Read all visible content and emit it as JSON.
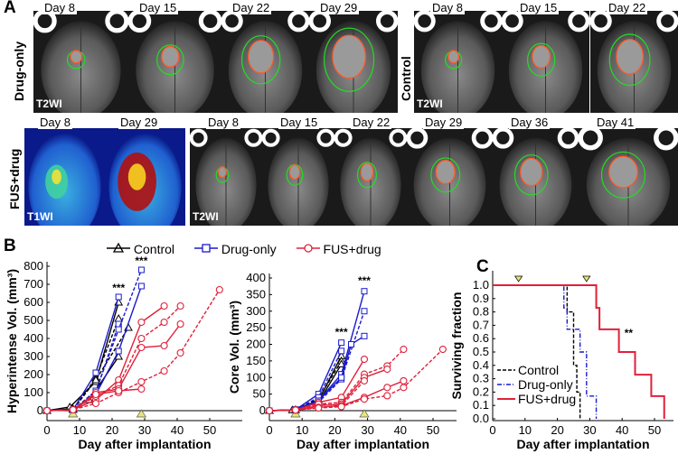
{
  "panel_a": {
    "letter": "A",
    "drug_only": {
      "label": "Drug-only",
      "days": [
        "Day 8",
        "Day 15",
        "Day 22",
        "Day 29"
      ],
      "sequence": "T2WI"
    },
    "control": {
      "label": "Control",
      "days": [
        "Day 8",
        "Day 15",
        "Day 22"
      ],
      "sequence": "T2WI"
    },
    "fus_drug": {
      "label": "FUS+drug",
      "t1_days": [
        "Day 8",
        "Day 29"
      ],
      "t1_sequence": "T1WI",
      "t2_days": [
        "Day 8",
        "Day 15",
        "Day 22",
        "Day 29",
        "Day 36",
        "Day 41"
      ],
      "t2_sequence": "T2WI"
    }
  },
  "panel_b": {
    "letter": "B"
  },
  "panel_c": {
    "letter": "C"
  },
  "legend": {
    "control": "Control",
    "drug_only": "Drug-only",
    "fus_drug": "FUS+drug"
  },
  "colors": {
    "control": "#000000",
    "drug_only": "#1a1acc",
    "fus_drug": "#e0203a",
    "marker": "#e6e67a",
    "outline_green": "#22dd22",
    "outline_red": "#ff5a2a"
  },
  "chart_data": [
    {
      "type": "line",
      "ylabel": "Hyperintense Vol. (mm³)",
      "xlabel": "Day after implantation",
      "xlim": [
        0,
        55
      ],
      "ylim": [
        -50,
        800
      ],
      "xticks": [
        0,
        10,
        20,
        30,
        40,
        50
      ],
      "yticks": [
        0,
        100,
        200,
        300,
        400,
        500,
        600,
        700,
        800
      ],
      "treatment_markers": [
        8,
        29
      ],
      "annotations": [
        {
          "text": "***",
          "x": 22,
          "y": 650
        },
        {
          "text": "***",
          "x": 29,
          "y": 800
        }
      ],
      "series": [
        {
          "name": "Control",
          "group": "control",
          "lines": [
            [
              [
                0,
                0
              ],
              [
                7,
                20
              ],
              [
                15,
                160
              ],
              [
                22,
                600
              ]
            ],
            [
              [
                0,
                0
              ],
              [
                8,
                5
              ],
              [
                15,
                180
              ],
              [
                22,
                510
              ]
            ],
            [
              [
                0,
                0
              ],
              [
                8,
                10
              ],
              [
                13,
                60
              ],
              [
                22,
                300
              ]
            ],
            [
              [
                0,
                0
              ],
              [
                8,
                5
              ],
              [
                15,
                170
              ],
              [
                25,
                460
              ]
            ]
          ]
        },
        {
          "name": "Drug-only",
          "group": "drug_only",
          "lines": [
            [
              [
                0,
                0
              ],
              [
                8,
                5
              ],
              [
                15,
                210
              ],
              [
                22,
                630
              ]
            ],
            [
              [
                0,
                0
              ],
              [
                8,
                5
              ],
              [
                15,
                100
              ],
              [
                22,
                480
              ]
            ],
            [
              [
                0,
                0
              ],
              [
                8,
                5
              ],
              [
                15,
                90
              ],
              [
                22,
                330
              ],
              [
                29,
                690
              ]
            ],
            [
              [
                0,
                0
              ],
              [
                8,
                5
              ],
              [
                15,
                110
              ],
              [
                22,
                450
              ],
              [
                29,
                780
              ]
            ]
          ]
        },
        {
          "name": "FUS+drug",
          "group": "fus_drug",
          "lines": [
            [
              [
                0,
                0
              ],
              [
                8,
                5
              ],
              [
                15,
                60
              ],
              [
                22,
                170
              ],
              [
                29,
                490
              ],
              [
                36,
                580
              ]
            ],
            [
              [
                0,
                0
              ],
              [
                8,
                5
              ],
              [
                15,
                80
              ],
              [
                22,
                140
              ],
              [
                29,
                400
              ],
              [
                36,
                490
              ],
              [
                41,
                580
              ]
            ],
            [
              [
                0,
                0
              ],
              [
                8,
                5
              ],
              [
                15,
                100
              ],
              [
                22,
                120
              ],
              [
                29,
                350
              ],
              [
                36,
                360
              ],
              [
                41,
                480
              ]
            ],
            [
              [
                0,
                0
              ],
              [
                8,
                5
              ],
              [
                15,
                40
              ],
              [
                22,
                100
              ],
              [
                29,
                160
              ],
              [
                36,
                220
              ],
              [
                41,
                320
              ],
              [
                53,
                670
              ]
            ],
            [
              [
                0,
                0
              ],
              [
                8,
                5
              ],
              [
                15,
                90
              ],
              [
                22,
                110
              ],
              [
                29,
                120
              ]
            ]
          ]
        }
      ]
    },
    {
      "type": "line",
      "ylabel": "Core Vol. (mm³)",
      "xlabel": "Day after implantation",
      "xlim": [
        0,
        55
      ],
      "ylim": [
        -25,
        400
      ],
      "xticks": [
        0,
        10,
        20,
        30,
        40,
        50
      ],
      "yticks": [
        0,
        50,
        100,
        150,
        200,
        250,
        300,
        350,
        400
      ],
      "treatment_markers": [
        8,
        29
      ],
      "annotations": [
        {
          "text": "***",
          "x": 22,
          "y": 220
        },
        {
          "text": "***",
          "x": 29,
          "y": 375
        }
      ],
      "series": [
        {
          "name": "Control",
          "group": "control",
          "lines": [
            [
              [
                0,
                0
              ],
              [
                7,
                2
              ],
              [
                15,
                30
              ],
              [
                22,
                165
              ]
            ],
            [
              [
                0,
                0
              ],
              [
                8,
                3
              ],
              [
                15,
                35
              ],
              [
                22,
                150
              ]
            ],
            [
              [
                0,
                0
              ],
              [
                8,
                2
              ],
              [
                15,
                25
              ],
              [
                22,
                140
              ]
            ]
          ]
        },
        {
          "name": "Drug-only",
          "group": "drug_only",
          "lines": [
            [
              [
                0,
                0
              ],
              [
                8,
                3
              ],
              [
                15,
                50
              ],
              [
                22,
                205
              ]
            ],
            [
              [
                0,
                0
              ],
              [
                8,
                3
              ],
              [
                15,
                40
              ],
              [
                22,
                180
              ]
            ],
            [
              [
                0,
                0
              ],
              [
                8,
                3
              ],
              [
                15,
                30
              ],
              [
                22,
                110
              ],
              [
                29,
                360
              ]
            ],
            [
              [
                0,
                0
              ],
              [
                8,
                3
              ],
              [
                15,
                25
              ],
              [
                22,
                95
              ],
              [
                29,
                300
              ]
            ],
            [
              [
                0,
                0
              ],
              [
                8,
                3
              ],
              [
                15,
                30
              ],
              [
                22,
                100
              ],
              [
                25,
                200
              ],
              [
                29,
                225
              ]
            ]
          ]
        },
        {
          "name": "FUS+drug",
          "group": "fus_drug",
          "lines": [
            [
              [
                0,
                0
              ],
              [
                8,
                2
              ],
              [
                15,
                25
              ],
              [
                22,
                40
              ],
              [
                29,
                155
              ]
            ],
            [
              [
                0,
                0
              ],
              [
                8,
                2
              ],
              [
                15,
                20
              ],
              [
                22,
                25
              ],
              [
                29,
                110
              ],
              [
                36,
                135
              ],
              [
                41,
                185
              ]
            ],
            [
              [
                0,
                0
              ],
              [
                8,
                2
              ],
              [
                15,
                15
              ],
              [
                22,
                20
              ],
              [
                29,
                100
              ],
              [
                36,
                125
              ]
            ],
            [
              [
                0,
                0
              ],
              [
                8,
                2
              ],
              [
                15,
                20
              ],
              [
                22,
                15
              ],
              [
                29,
                90
              ]
            ],
            [
              [
                0,
                0
              ],
              [
                8,
                2
              ],
              [
                15,
                10
              ],
              [
                22,
                15
              ],
              [
                29,
                40
              ],
              [
                36,
                70
              ],
              [
                41,
                90
              ]
            ],
            [
              [
                0,
                0
              ],
              [
                8,
                2
              ],
              [
                15,
                8
              ],
              [
                22,
                12
              ],
              [
                29,
                35
              ],
              [
                36,
                45
              ],
              [
                41,
                70
              ],
              [
                53,
                185
              ]
            ]
          ]
        }
      ]
    },
    {
      "type": "line",
      "subtype": "kaplan-meier",
      "ylabel": "Surviving fraction",
      "xlabel": "Day after implantation",
      "xlim": [
        0,
        55
      ],
      "ylim": [
        0,
        1.1
      ],
      "xticks": [
        0,
        10,
        20,
        30,
        40,
        50
      ],
      "yticks": [
        "0.0",
        "0.1",
        "0.2",
        "0.3",
        "0.4",
        "0.5",
        "0.6",
        "0.7",
        "0.8",
        "0.9",
        "1.0"
      ],
      "treatment_markers": [
        8,
        29
      ],
      "annotations": [
        {
          "text": "**",
          "x": 42,
          "y": 0.6
        }
      ],
      "legend_position": "bottom-left",
      "series": [
        {
          "name": "Control",
          "group": "control",
          "style": "dashed",
          "steps": [
            [
              0,
              1.0
            ],
            [
              23,
              0.8
            ],
            [
              25,
              0.4
            ],
            [
              26,
              0.2
            ],
            [
              27,
              0.0
            ]
          ]
        },
        {
          "name": "Drug-only",
          "group": "drug_only",
          "style": "dash-dot",
          "steps": [
            [
              0,
              1.0
            ],
            [
              22,
              0.83
            ],
            [
              23,
              0.67
            ],
            [
              27,
              0.5
            ],
            [
              29,
              0.17
            ],
            [
              32,
              0.0
            ]
          ]
        },
        {
          "name": "FUS+drug",
          "group": "fus_drug",
          "style": "solid",
          "steps": [
            [
              0,
              1.0
            ],
            [
              32,
              0.83
            ],
            [
              33,
              0.67
            ],
            [
              39,
              0.5
            ],
            [
              44,
              0.33
            ],
            [
              49,
              0.17
            ],
            [
              53,
              0.0
            ]
          ]
        }
      ]
    }
  ]
}
